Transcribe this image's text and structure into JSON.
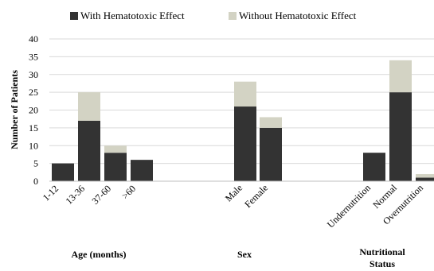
{
  "chart_data": {
    "type": "bar",
    "stacked": true,
    "ylabel": "Number  of Patients",
    "ylim": [
      0,
      40
    ],
    "yticks": [
      0,
      5,
      10,
      15,
      20,
      25,
      30,
      35,
      40
    ],
    "grid": true,
    "legend_position": "top",
    "series": [
      {
        "name": "With Hematotoxic Effect",
        "color": "#333333",
        "values": [
          5,
          17,
          8,
          6,
          21,
          15,
          8,
          25,
          1
        ]
      },
      {
        "name": "Without Hematotoxic Effect",
        "color": "#d3d3c4",
        "values": [
          0,
          8,
          2,
          0,
          7,
          3,
          0,
          9,
          1
        ]
      }
    ],
    "groups": [
      {
        "title": "Age (months)",
        "categories": [
          "1-12",
          "13-36",
          "37-60",
          ">60"
        ]
      },
      {
        "title": "Sex",
        "categories": [
          "Male",
          "Female"
        ]
      },
      {
        "title_lines": [
          "Nutritional",
          "Status"
        ],
        "categories": [
          "Undernutrition",
          "Normal",
          "Overnutrition"
        ]
      }
    ]
  }
}
